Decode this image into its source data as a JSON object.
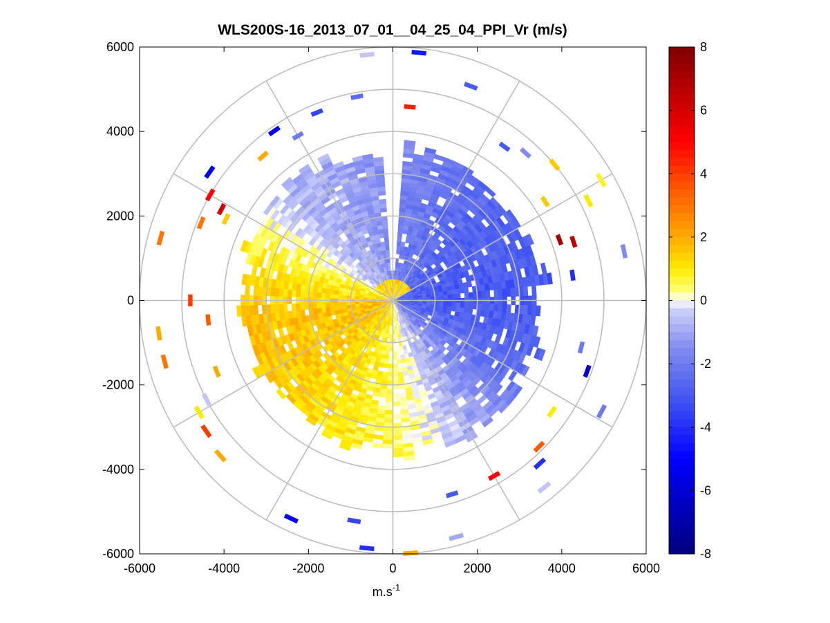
{
  "chart_data": {
    "type": "heatmap",
    "subtype": "polar-ppi-scan",
    "title": "WLS200S-16_2013_07_01__04_25_04_PPI_Vr (m/s)",
    "xlabel": "m.s",
    "xlabel_superscript": "-1",
    "ylabel": "",
    "xlim": [
      -6000,
      6000
    ],
    "ylim": [
      -6000,
      6000
    ],
    "x_ticks": [
      -6000,
      -4000,
      -2000,
      0,
      2000,
      4000,
      6000
    ],
    "y_ticks": [
      6000,
      4000,
      2000,
      0,
      -2000,
      -4000,
      -6000
    ],
    "x_tick_labels": [
      "-6000",
      "-4000",
      "-2000",
      "0",
      "2000",
      "4000",
      "6000"
    ],
    "y_tick_labels": [
      "6000",
      "4000",
      "2000",
      "0",
      "-2000",
      "-4000",
      "-6000"
    ],
    "polar_grid_radii": [
      1000,
      2000,
      3000,
      4000,
      5000,
      6000
    ],
    "polar_grid_spoke_angles_deg": [
      0,
      30,
      60,
      90,
      120,
      150,
      180,
      210,
      240,
      270,
      300,
      330
    ],
    "colorbar": {
      "label_units": "m/s",
      "min": -8,
      "max": 8,
      "ticks": [
        8,
        6,
        4,
        2,
        0,
        -2,
        -4,
        -6,
        -8
      ],
      "tick_labels": [
        "8",
        "6",
        "4",
        "2",
        "0",
        "-2",
        "-4",
        "-6",
        "-8"
      ]
    },
    "radial_velocity_field": {
      "units": "m/s",
      "azimuth_zero": "north (up), clockwise",
      "dense_range_max_m": 3800,
      "max_data_range_m": 6000,
      "range_gate_m": 100,
      "near_zone_radius_m": 500,
      "azimuth_profile_deg_to_vr": [
        [
          0,
          -1.6
        ],
        [
          30,
          -2.3
        ],
        [
          60,
          -2.8
        ],
        [
          90,
          -3.0
        ],
        [
          120,
          -2.3
        ],
        [
          150,
          -0.8
        ],
        [
          170,
          0.3
        ],
        [
          200,
          1.0
        ],
        [
          230,
          1.5
        ],
        [
          260,
          1.7
        ],
        [
          290,
          0.8
        ],
        [
          315,
          -0.7
        ],
        [
          340,
          -1.0
        ],
        [
          360,
          -1.6
        ]
      ],
      "near_zone_vr": 1.3,
      "gaps_deg": [
        [
          -3,
          3
        ],
        [
          357,
          363
        ]
      ]
    },
    "far_range_segments": [
      {
        "az": 354,
        "r": 5850,
        "vr": -0.5
      },
      {
        "az": 6,
        "r": 5900,
        "vr": -4.5
      },
      {
        "az": 5,
        "r": 4600,
        "vr": 4.5
      },
      {
        "az": 350,
        "r": 4900,
        "vr": -2.5
      },
      {
        "az": 338,
        "r": 4800,
        "vr": -3.5
      },
      {
        "az": 330,
        "r": 4500,
        "vr": -2.0
      },
      {
        "az": 325,
        "r": 4900,
        "vr": -5.0
      },
      {
        "az": 318,
        "r": 4600,
        "vr": 2.0
      },
      {
        "az": 305,
        "r": 5300,
        "vr": -5.5
      },
      {
        "az": 300,
        "r": 5000,
        "vr": 5.0
      },
      {
        "az": 298,
        "r": 4600,
        "vr": 6.0
      },
      {
        "az": 296,
        "r": 4400,
        "vr": 1.5
      },
      {
        "az": 292,
        "r": 4900,
        "vr": 3.0
      },
      {
        "az": 285,
        "r": 5700,
        "vr": 3.0
      },
      {
        "az": 270,
        "r": 4800,
        "vr": 4.0
      },
      {
        "az": 262,
        "r": 5600,
        "vr": 2.0
      },
      {
        "az": 264,
        "r": 4400,
        "vr": 3.5
      },
      {
        "az": 255,
        "r": 5600,
        "vr": 3.0
      },
      {
        "az": 248,
        "r": 4500,
        "vr": 2.0
      },
      {
        "az": 242,
        "r": 5000,
        "vr": -0.5
      },
      {
        "az": 240,
        "r": 5300,
        "vr": 1.0
      },
      {
        "az": 235,
        "r": 5400,
        "vr": 4.0
      },
      {
        "az": 228,
        "r": 5500,
        "vr": 2.0
      },
      {
        "az": 205,
        "r": 5700,
        "vr": -5.0
      },
      {
        "az": 190,
        "r": 5300,
        "vr": -3.5
      },
      {
        "az": 186,
        "r": 5900,
        "vr": -4.0
      },
      {
        "az": 176,
        "r": 6000,
        "vr": 2.0
      },
      {
        "az": 165,
        "r": 5800,
        "vr": -1.0
      },
      {
        "az": 163,
        "r": 4800,
        "vr": -3.0
      },
      {
        "az": 150,
        "r": 4800,
        "vr": 5.0
      },
      {
        "az": 141,
        "r": 5700,
        "vr": -0.5
      },
      {
        "az": 138,
        "r": 5200,
        "vr": -4.0
      },
      {
        "az": 135,
        "r": 4900,
        "vr": 3.5
      },
      {
        "az": 125,
        "r": 4600,
        "vr": 1.0
      },
      {
        "az": 118,
        "r": 5600,
        "vr": -2.0
      },
      {
        "az": 110,
        "r": 4900,
        "vr": -6.0
      },
      {
        "az": 104,
        "r": 4600,
        "vr": -2.0
      },
      {
        "az": 82,
        "r": 4300,
        "vr": -4.0
      },
      {
        "az": 78,
        "r": 5600,
        "vr": -1.5
      },
      {
        "az": 72,
        "r": 4500,
        "vr": 6.5
      },
      {
        "az": 70,
        "r": 4200,
        "vr": 7.0
      },
      {
        "az": 63,
        "r": 5200,
        "vr": 1.0
      },
      {
        "az": 60,
        "r": 5700,
        "vr": 0.8
      },
      {
        "az": 57,
        "r": 4300,
        "vr": 1.5
      },
      {
        "az": 50,
        "r": 5000,
        "vr": 1.5
      },
      {
        "az": 42,
        "r": 4700,
        "vr": -1.5
      },
      {
        "az": 36,
        "r": 4500,
        "vr": -3.0
      },
      {
        "az": 20,
        "r": 5400,
        "vr": -3.0
      }
    ]
  }
}
